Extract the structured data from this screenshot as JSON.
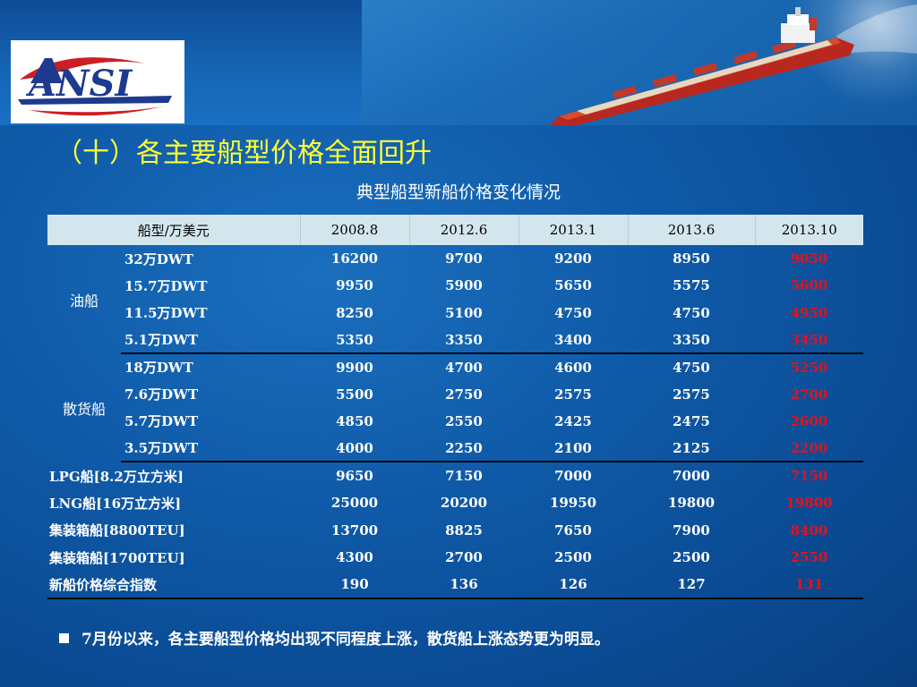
{
  "slide": {
    "title": "（十）各主要船型价格全面回升",
    "logo_text": "ANSI",
    "note": "7月份以来，各主要船型价格均出现不同程度上涨，散货船上涨态势更为明显。"
  },
  "colors": {
    "title": "#ffff33",
    "latest_value": "#e8101a",
    "header_bg": "#d4e6ed",
    "background": "#0f5aa8"
  },
  "chart_data": {
    "type": "table",
    "title": "典型船型新船价格变化情况",
    "header": [
      "船型/万美元",
      "2008.8",
      "2012.6",
      "2013.1",
      "2013.6",
      "2013.10"
    ],
    "groups": [
      {
        "category": "油船",
        "rows": [
          {
            "label": "32万DWT",
            "values": [
              "16200",
              "9700",
              "9200",
              "8950",
              "9050"
            ]
          },
          {
            "label": "15.7万DWT",
            "values": [
              "9950",
              "5900",
              "5650",
              "5575",
              "5600"
            ]
          },
          {
            "label": "11.5万DWT",
            "values": [
              "8250",
              "5100",
              "4750",
              "4750",
              "4950"
            ]
          },
          {
            "label": "5.1万DWT",
            "values": [
              "5350",
              "3350",
              "3400",
              "3350",
              "3450"
            ]
          }
        ]
      },
      {
        "category": "散货船",
        "rows": [
          {
            "label": "18万DWT",
            "values": [
              "9900",
              "4700",
              "4600",
              "4750",
              "5250"
            ]
          },
          {
            "label": "7.6万DWT",
            "values": [
              "5500",
              "2750",
              "2575",
              "2575",
              "2700"
            ]
          },
          {
            "label": "5.7万DWT",
            "values": [
              "4850",
              "2550",
              "2425",
              "2475",
              "2600"
            ]
          },
          {
            "label": "3.5万DWT",
            "values": [
              "4000",
              "2250",
              "2100",
              "2125",
              "2200"
            ]
          }
        ]
      }
    ],
    "other_rows": [
      {
        "label": "LPG船[8.2万立方米]",
        "values": [
          "9650",
          "7150",
          "7000",
          "7000",
          "7150"
        ]
      },
      {
        "label": "LNG船[16万立方米]",
        "values": [
          "25000",
          "20200",
          "19950",
          "19800",
          "19800"
        ]
      },
      {
        "label": "集装箱船[8800TEU]",
        "values": [
          "13700",
          "8825",
          "7650",
          "7900",
          "8400"
        ]
      },
      {
        "label": "集装箱船[1700TEU]",
        "values": [
          "4300",
          "2700",
          "2500",
          "2500",
          "2550"
        ]
      },
      {
        "label": "新船价格综合指数",
        "values": [
          "190",
          "136",
          "126",
          "127",
          "131"
        ]
      }
    ]
  }
}
